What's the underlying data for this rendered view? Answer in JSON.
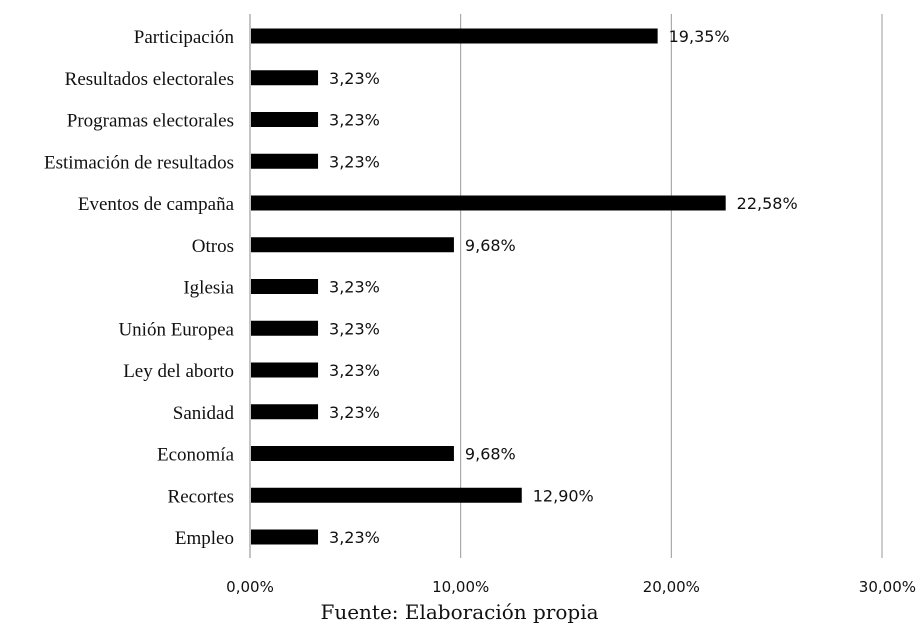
{
  "chart_data": {
    "type": "bar",
    "orientation": "horizontal",
    "categories": [
      "Participación",
      "Resultados electorales",
      "Programas electorales",
      "Estimación de resultados",
      "Eventos de campaña",
      "Otros",
      "Iglesia",
      "Unión Europea",
      "Ley del aborto",
      "Sanidad",
      "Economía",
      "Recortes",
      "Empleo"
    ],
    "values": [
      19.35,
      3.23,
      3.23,
      3.23,
      22.58,
      9.68,
      3.23,
      3.23,
      3.23,
      3.23,
      9.68,
      12.9,
      3.23
    ],
    "value_labels": [
      "19,35%",
      "3,23%",
      "3,23%",
      "3,23%",
      "22,58%",
      "9,68%",
      "3,23%",
      "3,23%",
      "3,23%",
      "3,23%",
      "9,68%",
      "12,90%",
      "3,23%"
    ],
    "xlim": [
      0,
      30
    ],
    "x_ticks": [
      0,
      10,
      20,
      30
    ],
    "x_tick_labels": [
      "0,00%",
      "10,00%",
      "20,00%",
      "30,00%"
    ],
    "grid": "vertical",
    "bar_color": "#000000",
    "grid_color": "#9a9a9a",
    "source": "Fuente: Elaboración propia"
  }
}
